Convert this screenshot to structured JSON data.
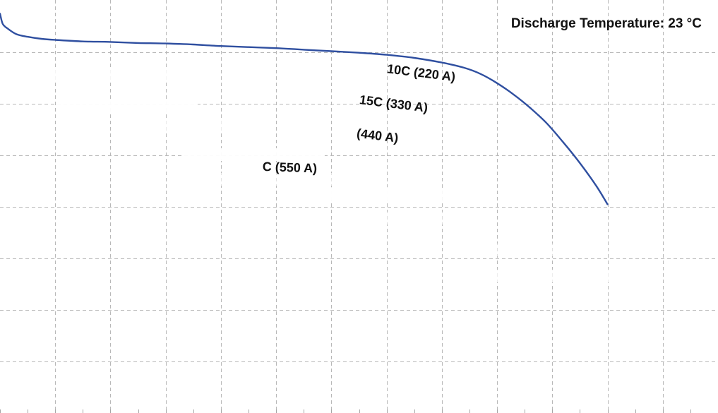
{
  "chart_data": {
    "type": "line",
    "annotation_title": "Discharge Temperature: 23 °C",
    "xlim": [
      0,
      13
    ],
    "ylim": [
      0,
      8
    ],
    "grid": true,
    "series": [
      {
        "color": "#2f4fa0",
        "points": [
          [
            0.0,
            7.75
          ],
          [
            0.05,
            7.55
          ],
          [
            0.15,
            7.45
          ],
          [
            0.3,
            7.35
          ],
          [
            0.5,
            7.3
          ],
          [
            0.75,
            7.26
          ],
          [
            1.0,
            7.24
          ],
          [
            1.5,
            7.21
          ],
          [
            2.0,
            7.2
          ],
          [
            2.5,
            7.18
          ],
          [
            3.0,
            7.17
          ],
          [
            3.5,
            7.15
          ],
          [
            4.0,
            7.12
          ],
          [
            4.5,
            7.1
          ],
          [
            5.0,
            7.08
          ],
          [
            5.5,
            7.05
          ],
          [
            6.0,
            7.02
          ],
          [
            6.5,
            6.99
          ],
          [
            7.0,
            6.95
          ],
          [
            7.5,
            6.89
          ],
          [
            8.0,
            6.8
          ],
          [
            8.4,
            6.7
          ],
          [
            8.7,
            6.58
          ],
          [
            9.0,
            6.4
          ],
          [
            9.3,
            6.18
          ],
          [
            9.6,
            5.92
          ],
          [
            9.9,
            5.62
          ],
          [
            10.2,
            5.25
          ],
          [
            10.5,
            4.85
          ],
          [
            10.8,
            4.4
          ],
          [
            11.0,
            4.05
          ]
        ]
      }
    ],
    "annotations": [
      {
        "text": "10C (220 A)",
        "x": 7.0,
        "y": 6.6,
        "rotate": 7
      },
      {
        "text": "15C (330 A)",
        "x": 6.5,
        "y": 6.0,
        "rotate": 7
      },
      {
        "text": "(440 A)",
        "x": 6.45,
        "y": 5.35,
        "rotate": 7
      },
      {
        "text": "C (550 A)",
        "x": 4.75,
        "y": 4.7,
        "rotate": 2
      }
    ]
  }
}
